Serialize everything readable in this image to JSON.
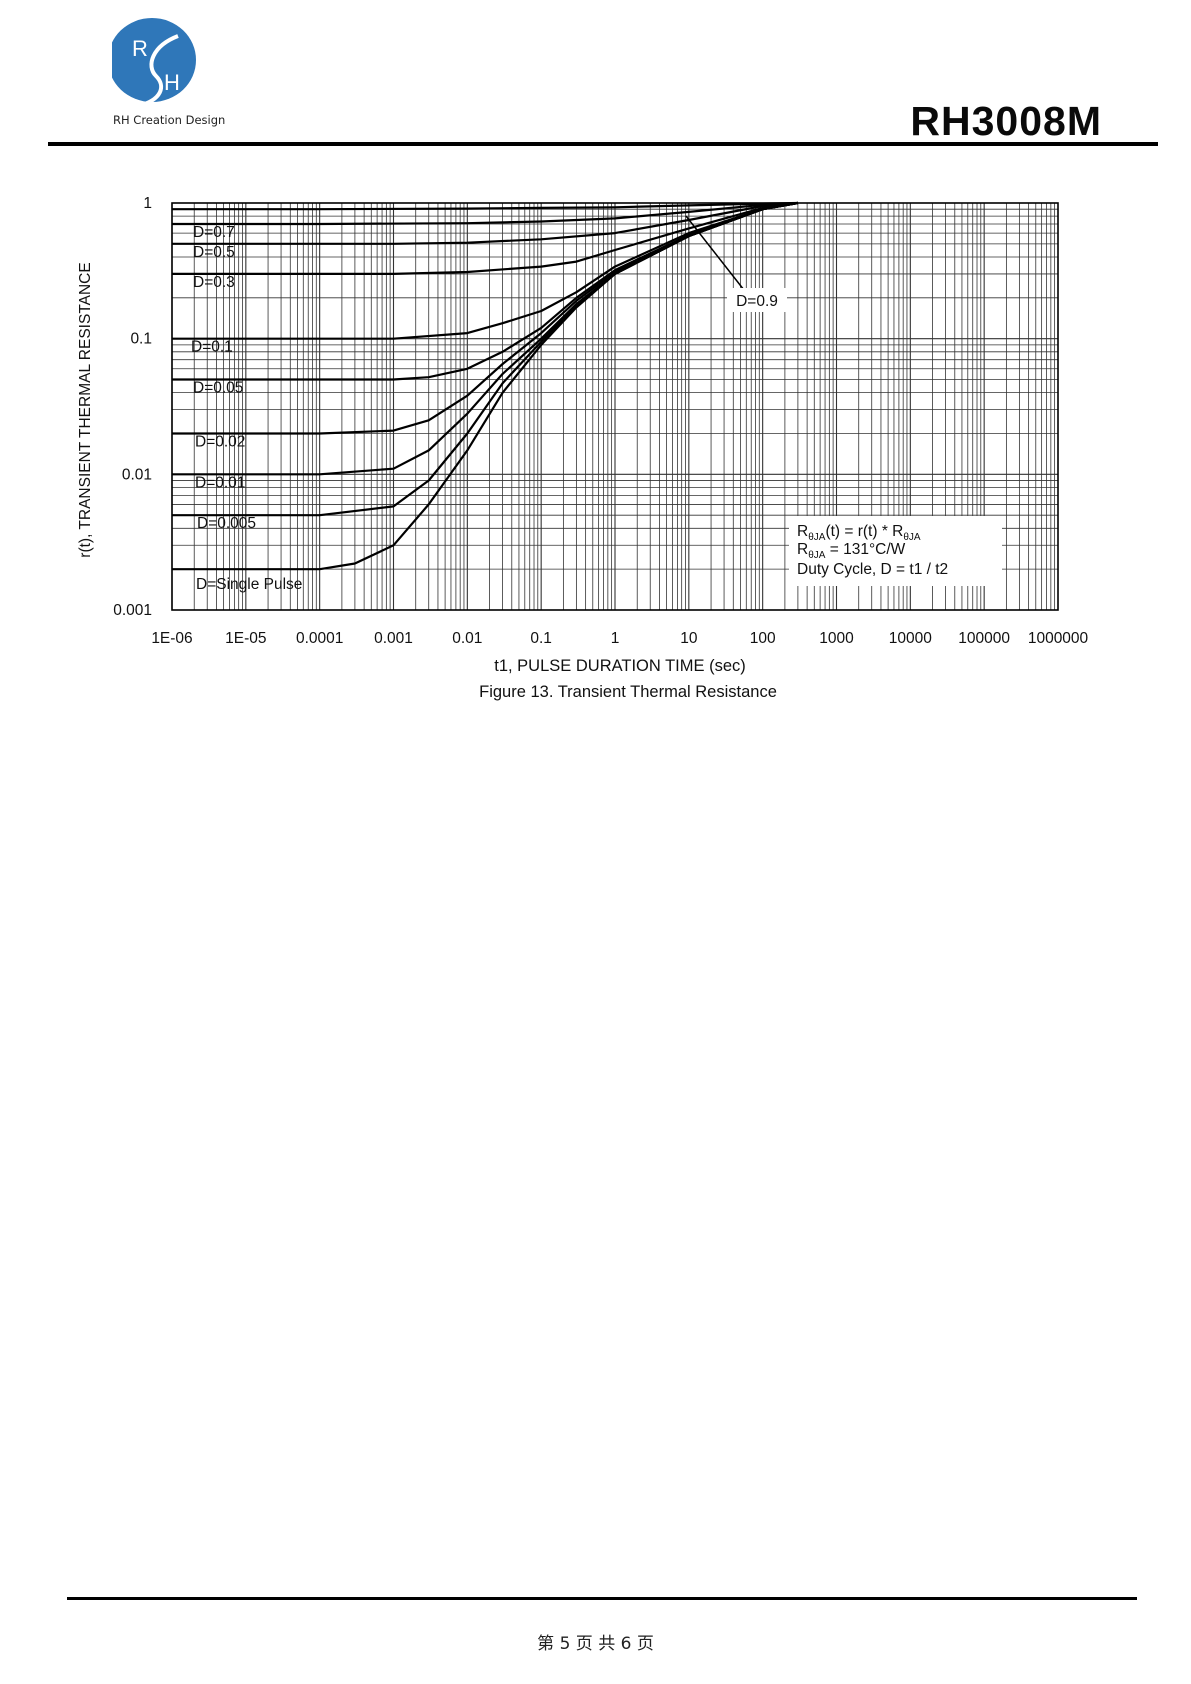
{
  "header": {
    "logo_letters": [
      "R",
      "H"
    ],
    "logo_caption": "RH Creation Design",
    "part_number": "RH3008M"
  },
  "footer": {
    "page_text": "第 5 页 共 6 页"
  },
  "colors": {
    "logo_blue": "#2f77b9",
    "ink": "#000000"
  },
  "chart_data": {
    "type": "line",
    "title": "",
    "caption": "Figure 13. Transient Thermal Resistance",
    "xlabel": "t1, PULSE DURATION TIME (sec)",
    "ylabel": "r(t), TRANSIENT THERMAL RESISTANCE",
    "xscale": "log",
    "yscale": "log",
    "xlim": [
      1e-06,
      1000000
    ],
    "ylim": [
      0.001,
      1
    ],
    "grid": true,
    "x_tick_labels": [
      "1E-06",
      "1E-05",
      "0.0001",
      "0.001",
      "0.01",
      "0.1",
      "1",
      "10",
      "100",
      "1000",
      "10000",
      "100000",
      "1000000"
    ],
    "y_tick_labels": [
      "1",
      "0.1",
      "0.01",
      "0.001"
    ],
    "series": [
      {
        "name": "D=0.9",
        "x": [
          1e-06,
          0.0001,
          0.01,
          0.1,
          1,
          10,
          100,
          300
        ],
        "y": [
          0.9,
          0.9,
          0.91,
          0.92,
          0.93,
          0.96,
          0.99,
          1.0
        ]
      },
      {
        "name": "D=0.7",
        "x": [
          1e-06,
          0.0001,
          0.01,
          0.1,
          1,
          10,
          100,
          300
        ],
        "y": [
          0.7,
          0.7,
          0.71,
          0.73,
          0.77,
          0.86,
          0.97,
          1.0
        ]
      },
      {
        "name": "D=0.5",
        "x": [
          1e-06,
          0.001,
          0.01,
          0.1,
          1,
          10,
          100,
          300
        ],
        "y": [
          0.5,
          0.5,
          0.51,
          0.54,
          0.6,
          0.75,
          0.95,
          1.0
        ]
      },
      {
        "name": "D=0.3",
        "x": [
          1e-06,
          0.001,
          0.01,
          0.1,
          0.3,
          1,
          10,
          100,
          300
        ],
        "y": [
          0.3,
          0.3,
          0.31,
          0.34,
          0.37,
          0.45,
          0.65,
          0.92,
          1.0
        ]
      },
      {
        "name": "D=0.1",
        "x": [
          1e-06,
          0.001,
          0.01,
          0.03,
          0.1,
          0.3,
          1,
          10,
          100,
          300
        ],
        "y": [
          0.1,
          0.1,
          0.11,
          0.13,
          0.16,
          0.22,
          0.34,
          0.6,
          0.9,
          1.0
        ]
      },
      {
        "name": "D=0.05",
        "x": [
          1e-06,
          0.001,
          0.003,
          0.01,
          0.03,
          0.1,
          0.3,
          1,
          10,
          100,
          300
        ],
        "y": [
          0.05,
          0.05,
          0.052,
          0.06,
          0.08,
          0.12,
          0.2,
          0.32,
          0.58,
          0.9,
          1.0
        ]
      },
      {
        "name": "D=0.02",
        "x": [
          1e-06,
          0.0001,
          0.001,
          0.003,
          0.01,
          0.03,
          0.1,
          0.3,
          1,
          10,
          100,
          300
        ],
        "y": [
          0.02,
          0.02,
          0.021,
          0.025,
          0.038,
          0.065,
          0.11,
          0.19,
          0.31,
          0.57,
          0.9,
          1.0
        ]
      },
      {
        "name": "D=0.01",
        "x": [
          1e-06,
          0.0001,
          0.001,
          0.003,
          0.01,
          0.03,
          0.1,
          0.3,
          1,
          10,
          100,
          300
        ],
        "y": [
          0.01,
          0.01,
          0.011,
          0.015,
          0.028,
          0.055,
          0.1,
          0.18,
          0.3,
          0.57,
          0.9,
          1.0
        ]
      },
      {
        "name": "D=0.005",
        "x": [
          1e-06,
          0.0001,
          0.001,
          0.003,
          0.01,
          0.03,
          0.1,
          0.3,
          1,
          10,
          100,
          300
        ],
        "y": [
          0.005,
          0.005,
          0.0058,
          0.009,
          0.02,
          0.047,
          0.095,
          0.175,
          0.3,
          0.57,
          0.9,
          1.0
        ]
      },
      {
        "name": "D=Single Pulse",
        "x": [
          1e-06,
          0.0001,
          0.0003,
          0.001,
          0.003,
          0.01,
          0.03,
          0.1,
          0.3,
          1,
          10,
          100,
          300
        ],
        "y": [
          0.002,
          0.002,
          0.0022,
          0.003,
          0.006,
          0.015,
          0.04,
          0.09,
          0.17,
          0.3,
          0.57,
          0.9,
          1.0
        ]
      }
    ],
    "series_labels": [
      "D=0.7",
      "D=0.5",
      "D=0.3",
      "D=0.1",
      "D=0.05",
      "D=0.02",
      "D=0.01",
      "D=0.005",
      "D=Single Pulse"
    ],
    "callout_label": "D=0.9",
    "formula_lines": [
      [
        "R",
        "θJA",
        "(t) = r(t) * R",
        "θJA"
      ],
      [
        "R",
        "θJA",
        " = 131°C/W",
        ""
      ],
      [
        "Duty Cycle, D = t1 / t2",
        "",
        "",
        ""
      ]
    ]
  }
}
